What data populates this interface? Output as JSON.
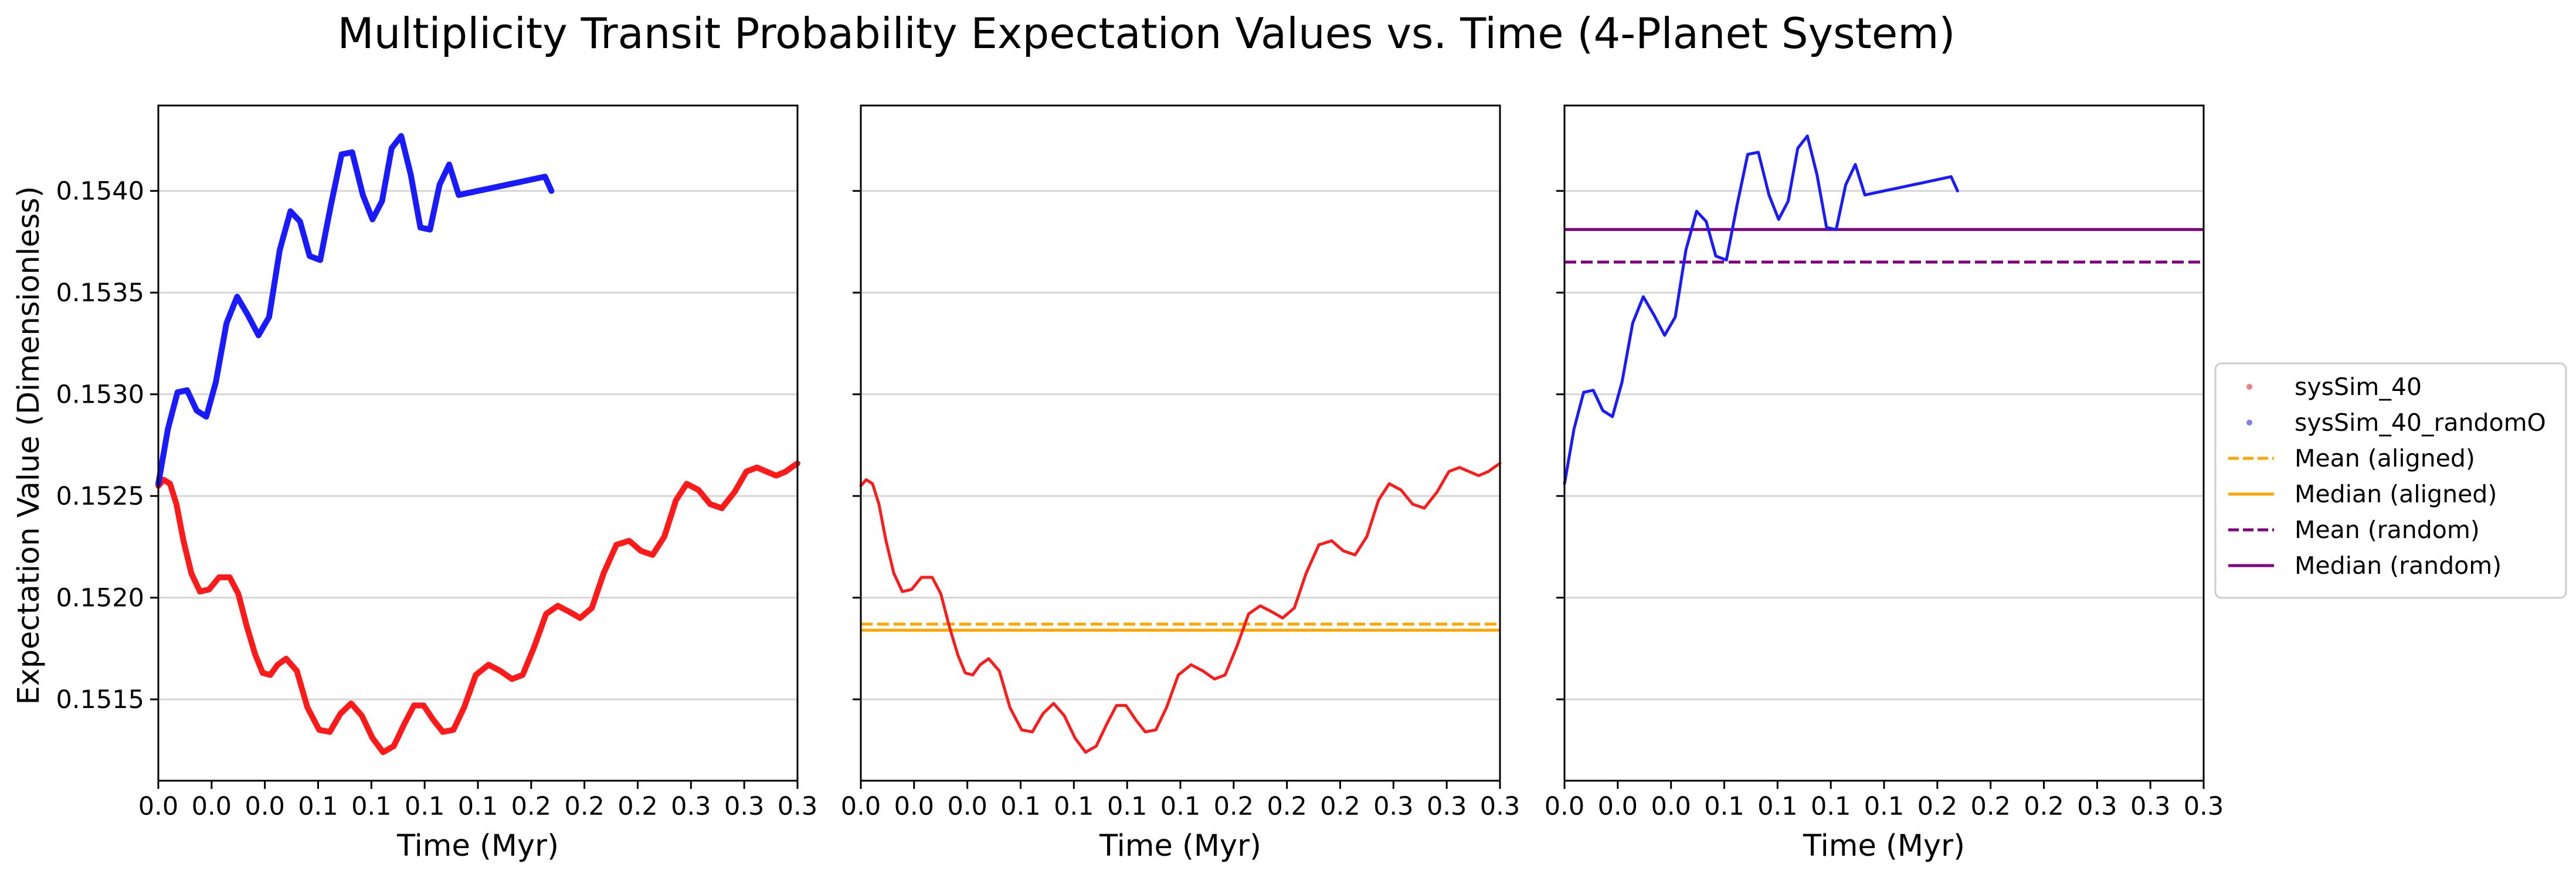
{
  "chart_data": {
    "type": "line",
    "title": "Multiplicity Transit Probability Expectation Values vs. Time (4-Planet System)",
    "ylabel": "Expectation Value (Dimensionless)",
    "xlim": [
      0.0,
      0.3
    ],
    "ylim": [
      0.1511,
      0.15442
    ],
    "yticks": [
      0.1515,
      0.152,
      0.1525,
      0.153,
      0.1535,
      0.154
    ],
    "ytick_labels": [
      "0.1515",
      "0.1520",
      "0.1525",
      "0.1530",
      "0.1535",
      "0.1540"
    ],
    "grid": "horizontal",
    "legend_position": "center right, outside plots",
    "legend": [
      {
        "label": "sysSim_40",
        "style": "scatter-dot",
        "color": "#f08080"
      },
      {
        "label": "sysSim_40_randomO",
        "style": "scatter-dot",
        "color": "#8080f0"
      },
      {
        "label": "Mean (aligned)",
        "style": "dashed",
        "color": "#ffa500"
      },
      {
        "label": "Median (aligned)",
        "style": "solid",
        "color": "#ffa500"
      },
      {
        "label": "Mean (random)",
        "style": "dashed",
        "color": "#800080"
      },
      {
        "label": "Median (random)",
        "style": "solid",
        "color": "#800080"
      }
    ],
    "series_red": {
      "name": "sysSim_40",
      "color": "#ff1a1a",
      "x": [
        0.0,
        0.0025,
        0.0055,
        0.0085,
        0.0118,
        0.0155,
        0.0195,
        0.0238,
        0.0285,
        0.0335,
        0.0375,
        0.0415,
        0.0455,
        0.049,
        0.0525,
        0.056,
        0.06,
        0.065,
        0.07,
        0.0755,
        0.0805,
        0.0855,
        0.0905,
        0.0955,
        0.1005,
        0.1055,
        0.1105,
        0.1155,
        0.12,
        0.1245,
        0.129,
        0.1335,
        0.1385,
        0.1435,
        0.149,
        0.155,
        0.1605,
        0.166,
        0.171,
        0.1765,
        0.182,
        0.1875,
        0.193,
        0.198,
        0.2035,
        0.209,
        0.215,
        0.221,
        0.2265,
        0.232,
        0.2375,
        0.243,
        0.248,
        0.2535,
        0.259,
        0.2645,
        0.2705,
        0.276,
        0.281,
        0.2855,
        0.29,
        0.2945,
        0.2985,
        0.3
      ],
      "y": [
        0.15255,
        0.15258,
        0.15256,
        0.15246,
        0.15228,
        0.15212,
        0.15203,
        0.15204,
        0.1521,
        0.1521,
        0.15202,
        0.15186,
        0.15172,
        0.15163,
        0.15162,
        0.15167,
        0.1517,
        0.15164,
        0.15146,
        0.15135,
        0.15134,
        0.15143,
        0.15148,
        0.15142,
        0.15131,
        0.15124,
        0.15127,
        0.15138,
        0.15147,
        0.15147,
        0.1514,
        0.15134,
        0.15135,
        0.15146,
        0.15162,
        0.15167,
        0.15164,
        0.1516,
        0.15162,
        0.15176,
        0.15192,
        0.15196,
        0.15193,
        0.1519,
        0.15195,
        0.15212,
        0.15226,
        0.15228,
        0.15223,
        0.15221,
        0.1523,
        0.15248,
        0.15256,
        0.15253,
        0.15246,
        0.15244,
        0.15252,
        0.15262,
        0.15264,
        0.15262,
        0.1526,
        0.15262,
        0.15265,
        0.15266
      ]
    },
    "series_blue": {
      "name": "sysSim_40_randomO",
      "color": "#1a1aff",
      "x": [
        0.0,
        0.0045,
        0.009,
        0.0135,
        0.018,
        0.0225,
        0.027,
        0.032,
        0.037,
        0.042,
        0.047,
        0.052,
        0.057,
        0.062,
        0.0665,
        0.071,
        0.076,
        0.081,
        0.086,
        0.091,
        0.096,
        0.1005,
        0.105,
        0.1095,
        0.114,
        0.1185,
        0.123,
        0.1275,
        0.132,
        0.1365,
        0.141,
        0.1455,
        0.15,
        0.1545,
        0.159,
        0.1635,
        0.168,
        0.1725,
        0.177,
        0.1815,
        0.1845
      ],
      "y": [
        0.15256,
        0.15283,
        0.15301,
        0.15302,
        0.15292,
        0.15289,
        0.15306,
        0.15335,
        0.15348,
        0.15339,
        0.15329,
        0.15338,
        0.15371,
        0.1539,
        0.15385,
        0.15368,
        0.15366,
        0.15393,
        0.15418,
        0.15419,
        0.15398,
        0.15386,
        0.15395,
        0.15421,
        0.15427,
        0.15408,
        0.15382,
        0.15381,
        0.15403,
        0.15413,
        0.15398,
        0.15399,
        0.154,
        0.15401,
        0.15402,
        0.15403,
        0.15404,
        0.15405,
        0.15406,
        0.15407,
        0.154
      ]
    },
    "reference_lines": {
      "mean_aligned": 0.15187,
      "median_aligned": 0.15184,
      "mean_random": 0.15365,
      "median_random": 0.15381
    },
    "subplots": [
      {
        "series": [
          "series_red",
          "series_blue"
        ],
        "reference": [],
        "linewidth": "thick",
        "y_ticklabels_shown": true
      },
      {
        "series": [
          "series_red"
        ],
        "reference": [
          "mean_aligned",
          "median_aligned"
        ],
        "linewidth": "thin",
        "y_ticklabels_shown": false
      },
      {
        "series": [
          "series_blue"
        ],
        "reference": [
          "mean_random",
          "median_random"
        ],
        "linewidth": "thin",
        "y_ticklabels_shown": false
      }
    ]
  },
  "labels": {
    "xlabel": "Time (Myr)",
    "xtick_labels": [
      "0.0",
      "0.0",
      "0.0",
      "0.1",
      "0.1",
      "0.1",
      "0.1",
      "0.2",
      "0.2",
      "0.2",
      "0.3",
      "0.3",
      "0.3"
    ]
  }
}
